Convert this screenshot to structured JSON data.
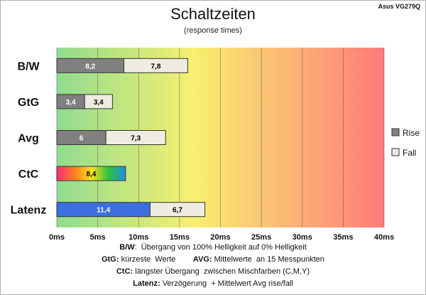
{
  "chart_data": {
    "type": "bar",
    "orientation": "horizontal",
    "stacked": true,
    "title": "Schaltzeiten",
    "subtitle": "(response times)",
    "model": "Asus VG279Q",
    "categories": [
      "B/W",
      "GtG",
      "Avg",
      "CtC",
      "Latenz"
    ],
    "series": [
      {
        "name": "Rise",
        "values": [
          8.2,
          3.4,
          6,
          8.4,
          11.4
        ],
        "labels": [
          "8,2",
          "3,4",
          "6",
          "8,4",
          "11,4"
        ],
        "color": "#808080"
      },
      {
        "name": "Fall",
        "values": [
          7.8,
          3.4,
          7.3,
          null,
          6.7
        ],
        "labels": [
          "7,8",
          "3,4",
          "7,3",
          "",
          "6,7"
        ],
        "color": "#eeece1"
      }
    ],
    "special_colors": {
      "CtC": "gradient-rainbow",
      "Latenz": "#3c6fe0"
    },
    "xlim": [
      0,
      40
    ],
    "xticks": [
      0,
      5,
      10,
      15,
      20,
      25,
      30,
      35,
      40
    ],
    "tick_labels": [
      "0ms",
      "5ms",
      "10ms",
      "15ms",
      "20ms",
      "25ms",
      "30ms",
      "35ms",
      "40ms"
    ],
    "grid": true,
    "legend_position": "right",
    "background_gradient": [
      "#8fdc8f",
      "#f8f070",
      "#ff7a7a"
    ]
  },
  "notes": [
    {
      "parts": [
        {
          "b": "B/W"
        },
        {
          "t": ":  Übergang von 100% Helligkeit auf 0% Helligkeit"
        }
      ]
    },
    {
      "parts": [
        {
          "b": "GtG:"
        },
        {
          "t": " kürzeste  Werte        "
        },
        {
          "b": "AVG:"
        },
        {
          "t": " Mittelwerte  an 15 Messpunkten"
        }
      ]
    },
    {
      "parts": [
        {
          "b": "CtC:"
        },
        {
          "t": " längster Übergang  zwischen Mischfarben (C,M,Y)"
        }
      ]
    },
    {
      "parts": [
        {
          "b": "Latenz:"
        },
        {
          "t": " Verzögerung  + Mittelwert Avg rise/fall"
        }
      ]
    }
  ]
}
